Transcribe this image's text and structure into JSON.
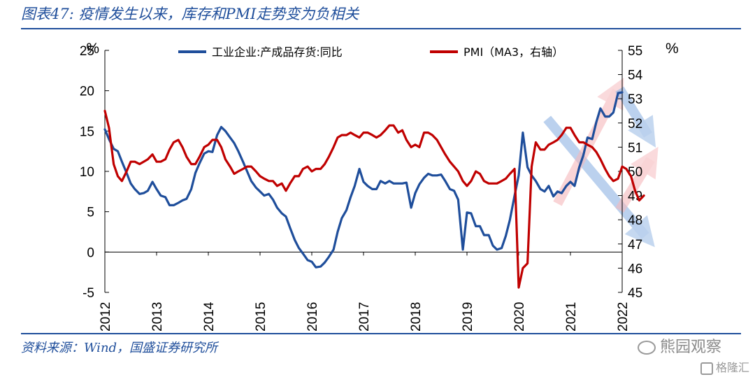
{
  "figure": {
    "title": "图表47: 疫情发生以来，库存和PMI走势变为负相关",
    "source": "资料来源：Wind，国盛证券研究所",
    "watermark": "熊园观察",
    "watermark2": "格隆汇"
  },
  "chart_data": {
    "type": "line",
    "left_unit": "%",
    "right_unit": "%",
    "x_ticks": [
      "2012",
      "2013",
      "2014",
      "2015",
      "2016",
      "2017",
      "2018",
      "2019",
      "2020",
      "2021",
      "2022"
    ],
    "x_range": [
      2012.0,
      2022.0
    ],
    "left_axis": {
      "range": [
        -5,
        25
      ],
      "ticks": [
        -5,
        0,
        5,
        10,
        15,
        20,
        25
      ]
    },
    "right_axis": {
      "range": [
        45,
        55
      ],
      "ticks": [
        45,
        46,
        47,
        48,
        49,
        50,
        51,
        52,
        53,
        54,
        55
      ]
    },
    "grid": false,
    "legend_position": "top",
    "series": [
      {
        "name": "工业企业:产成品存货:同比",
        "axis": "left",
        "color": "#1F4E9B",
        "points": [
          [
            2012.0,
            15.2
          ],
          [
            2012.08,
            14.0
          ],
          [
            2012.17,
            12.8
          ],
          [
            2012.25,
            12.5
          ],
          [
            2012.33,
            11.2
          ],
          [
            2012.42,
            9.8
          ],
          [
            2012.5,
            8.5
          ],
          [
            2012.58,
            7.8
          ],
          [
            2012.67,
            7.2
          ],
          [
            2012.75,
            7.3
          ],
          [
            2012.83,
            7.6
          ],
          [
            2012.92,
            8.7
          ],
          [
            2013.0,
            7.8
          ],
          [
            2013.08,
            7.0
          ],
          [
            2013.17,
            6.8
          ],
          [
            2013.25,
            5.8
          ],
          [
            2013.33,
            5.8
          ],
          [
            2013.42,
            6.1
          ],
          [
            2013.5,
            6.4
          ],
          [
            2013.58,
            6.6
          ],
          [
            2013.67,
            7.8
          ],
          [
            2013.75,
            9.8
          ],
          [
            2013.83,
            11.0
          ],
          [
            2013.92,
            12.2
          ],
          [
            2014.0,
            12.5
          ],
          [
            2014.08,
            12.4
          ],
          [
            2014.17,
            14.5
          ],
          [
            2014.25,
            15.5
          ],
          [
            2014.33,
            15.0
          ],
          [
            2014.42,
            14.2
          ],
          [
            2014.5,
            13.5
          ],
          [
            2014.58,
            12.5
          ],
          [
            2014.67,
            11.2
          ],
          [
            2014.75,
            10.0
          ],
          [
            2014.83,
            8.8
          ],
          [
            2014.92,
            8.0
          ],
          [
            2015.0,
            7.5
          ],
          [
            2015.08,
            7.0
          ],
          [
            2015.17,
            7.2
          ],
          [
            2015.25,
            6.5
          ],
          [
            2015.33,
            5.5
          ],
          [
            2015.42,
            4.8
          ],
          [
            2015.5,
            4.4
          ],
          [
            2015.58,
            3.0
          ],
          [
            2015.67,
            1.5
          ],
          [
            2015.75,
            0.5
          ],
          [
            2015.83,
            -0.2
          ],
          [
            2015.92,
            -1.0
          ],
          [
            2016.0,
            -1.2
          ],
          [
            2016.08,
            -1.9
          ],
          [
            2016.17,
            -1.8
          ],
          [
            2016.25,
            -1.3
          ],
          [
            2016.33,
            -0.6
          ],
          [
            2016.42,
            0.3
          ],
          [
            2016.5,
            2.5
          ],
          [
            2016.58,
            4.2
          ],
          [
            2016.67,
            5.2
          ],
          [
            2016.75,
            6.8
          ],
          [
            2016.83,
            8.2
          ],
          [
            2016.92,
            10.3
          ],
          [
            2017.0,
            8.7
          ],
          [
            2017.08,
            8.2
          ],
          [
            2017.17,
            7.8
          ],
          [
            2017.25,
            7.8
          ],
          [
            2017.33,
            8.8
          ],
          [
            2017.42,
            8.5
          ],
          [
            2017.5,
            8.8
          ],
          [
            2017.58,
            8.5
          ],
          [
            2017.67,
            8.5
          ],
          [
            2017.75,
            8.5
          ],
          [
            2017.83,
            8.6
          ],
          [
            2017.92,
            5.5
          ],
          [
            2018.0,
            7.3
          ],
          [
            2018.08,
            8.4
          ],
          [
            2018.17,
            9.2
          ],
          [
            2018.25,
            9.7
          ],
          [
            2018.33,
            9.5
          ],
          [
            2018.42,
            9.5
          ],
          [
            2018.5,
            9.6
          ],
          [
            2018.58,
            8.8
          ],
          [
            2018.67,
            7.8
          ],
          [
            2018.75,
            7.6
          ],
          [
            2018.83,
            6.5
          ],
          [
            2018.92,
            0.3
          ],
          [
            2019.0,
            4.9
          ],
          [
            2019.08,
            4.8
          ],
          [
            2019.17,
            3.2
          ],
          [
            2019.25,
            3.2
          ],
          [
            2019.33,
            2.1
          ],
          [
            2019.42,
            2.1
          ],
          [
            2019.5,
            0.8
          ],
          [
            2019.58,
            0.3
          ],
          [
            2019.67,
            0.5
          ],
          [
            2019.75,
            2.0
          ],
          [
            2019.83,
            4.0
          ],
          [
            2019.92,
            7.0
          ],
          [
            2020.0,
            9.5
          ],
          [
            2020.08,
            14.8
          ],
          [
            2020.17,
            10.5
          ],
          [
            2020.25,
            9.5
          ],
          [
            2020.33,
            8.8
          ],
          [
            2020.42,
            7.8
          ],
          [
            2020.5,
            7.5
          ],
          [
            2020.58,
            8.2
          ],
          [
            2020.67,
            6.9
          ],
          [
            2020.75,
            7.5
          ],
          [
            2020.83,
            7.3
          ],
          [
            2020.92,
            8.2
          ],
          [
            2021.0,
            8.7
          ],
          [
            2021.08,
            8.2
          ],
          [
            2021.17,
            10.5
          ],
          [
            2021.25,
            12.0
          ],
          [
            2021.33,
            14.2
          ],
          [
            2021.42,
            14.0
          ],
          [
            2021.5,
            16.1
          ],
          [
            2021.58,
            17.8
          ],
          [
            2021.67,
            16.8
          ],
          [
            2021.75,
            16.8
          ],
          [
            2021.83,
            17.3
          ],
          [
            2021.92,
            19.7
          ],
          [
            2022.0,
            19.8
          ]
        ]
      },
      {
        "name": "PMI（MA3，右轴）",
        "axis": "right",
        "color": "#C00000",
        "points": [
          [
            2012.0,
            52.5
          ],
          [
            2012.08,
            51.8
          ],
          [
            2012.17,
            50.3
          ],
          [
            2012.25,
            49.8
          ],
          [
            2012.33,
            49.6
          ],
          [
            2012.42,
            50.0
          ],
          [
            2012.5,
            50.4
          ],
          [
            2012.58,
            50.4
          ],
          [
            2012.67,
            50.3
          ],
          [
            2012.75,
            50.4
          ],
          [
            2012.83,
            50.5
          ],
          [
            2012.92,
            50.7
          ],
          [
            2013.0,
            50.4
          ],
          [
            2013.08,
            50.4
          ],
          [
            2013.17,
            50.5
          ],
          [
            2013.25,
            50.9
          ],
          [
            2013.33,
            51.2
          ],
          [
            2013.42,
            51.3
          ],
          [
            2013.5,
            51.0
          ],
          [
            2013.58,
            50.6
          ],
          [
            2013.67,
            50.3
          ],
          [
            2013.75,
            50.3
          ],
          [
            2013.83,
            50.6
          ],
          [
            2013.92,
            51.0
          ],
          [
            2014.0,
            51.1
          ],
          [
            2014.08,
            51.3
          ],
          [
            2014.17,
            51.3
          ],
          [
            2014.25,
            51.0
          ],
          [
            2014.33,
            50.5
          ],
          [
            2014.42,
            50.2
          ],
          [
            2014.5,
            49.9
          ],
          [
            2014.58,
            50.0
          ],
          [
            2014.67,
            50.1
          ],
          [
            2014.75,
            50.2
          ],
          [
            2014.83,
            50.2
          ],
          [
            2014.92,
            50.0
          ],
          [
            2015.0,
            49.8
          ],
          [
            2015.08,
            49.7
          ],
          [
            2015.17,
            49.6
          ],
          [
            2015.25,
            49.6
          ],
          [
            2015.33,
            49.4
          ],
          [
            2015.42,
            49.5
          ],
          [
            2015.5,
            49.2
          ],
          [
            2015.58,
            49.5
          ],
          [
            2015.67,
            49.8
          ],
          [
            2015.75,
            49.8
          ],
          [
            2015.83,
            50.1
          ],
          [
            2015.92,
            50.2
          ],
          [
            2016.0,
            50.0
          ],
          [
            2016.08,
            50.1
          ],
          [
            2016.17,
            50.1
          ],
          [
            2016.25,
            50.3
          ],
          [
            2016.33,
            50.6
          ],
          [
            2016.42,
            51.0
          ],
          [
            2016.5,
            51.4
          ],
          [
            2016.58,
            51.5
          ],
          [
            2016.67,
            51.5
          ],
          [
            2016.75,
            51.6
          ],
          [
            2016.83,
            51.5
          ],
          [
            2016.92,
            51.4
          ],
          [
            2017.0,
            51.6
          ],
          [
            2017.08,
            51.6
          ],
          [
            2017.17,
            51.5
          ],
          [
            2017.25,
            51.4
          ],
          [
            2017.33,
            51.5
          ],
          [
            2017.42,
            51.7
          ],
          [
            2017.5,
            51.9
          ],
          [
            2017.58,
            51.9
          ],
          [
            2017.67,
            51.6
          ],
          [
            2017.75,
            51.7
          ],
          [
            2017.83,
            51.3
          ],
          [
            2017.92,
            51.0
          ],
          [
            2018.0,
            51.1
          ],
          [
            2018.08,
            51.0
          ],
          [
            2018.17,
            51.6
          ],
          [
            2018.25,
            51.6
          ],
          [
            2018.33,
            51.5
          ],
          [
            2018.42,
            51.3
          ],
          [
            2018.5,
            51.0
          ],
          [
            2018.58,
            50.7
          ],
          [
            2018.67,
            50.4
          ],
          [
            2018.75,
            50.2
          ],
          [
            2018.83,
            50.0
          ],
          [
            2018.92,
            49.6
          ],
          [
            2019.0,
            49.4
          ],
          [
            2019.08,
            49.6
          ],
          [
            2019.17,
            50.0
          ],
          [
            2019.25,
            49.9
          ],
          [
            2019.33,
            49.6
          ],
          [
            2019.42,
            49.5
          ],
          [
            2019.5,
            49.5
          ],
          [
            2019.58,
            49.5
          ],
          [
            2019.67,
            49.6
          ],
          [
            2019.75,
            49.7
          ],
          [
            2019.83,
            49.9
          ],
          [
            2019.92,
            50.1
          ],
          [
            2020.0,
            45.2
          ],
          [
            2020.08,
            46.0
          ],
          [
            2020.17,
            46.2
          ],
          [
            2020.25,
            50.2
          ],
          [
            2020.33,
            51.2
          ],
          [
            2020.42,
            50.9
          ],
          [
            2020.5,
            50.9
          ],
          [
            2020.58,
            51.1
          ],
          [
            2020.67,
            51.2
          ],
          [
            2020.75,
            51.3
          ],
          [
            2020.83,
            51.5
          ],
          [
            2020.92,
            51.8
          ],
          [
            2021.0,
            51.8
          ],
          [
            2021.08,
            51.5
          ],
          [
            2021.17,
            51.2
          ],
          [
            2021.25,
            51.2
          ],
          [
            2021.33,
            51.1
          ],
          [
            2021.42,
            51.0
          ],
          [
            2021.5,
            50.8
          ],
          [
            2021.58,
            50.5
          ],
          [
            2021.67,
            50.1
          ],
          [
            2021.75,
            49.8
          ],
          [
            2021.83,
            49.6
          ],
          [
            2021.92,
            49.7
          ],
          [
            2022.0,
            50.2
          ],
          [
            2022.08,
            50.1
          ],
          [
            2022.17,
            49.8
          ],
          [
            2022.25,
            49.2
          ],
          [
            2022.33,
            48.8
          ],
          [
            2022.42,
            49.0
          ]
        ]
      }
    ],
    "annotations": [
      {
        "type": "arrow",
        "color": "#8FB4E3",
        "from": [
          2020.55,
          52.3
        ],
        "to": [
          2022.45,
          51.7
        ],
        "label": ""
      }
    ]
  }
}
